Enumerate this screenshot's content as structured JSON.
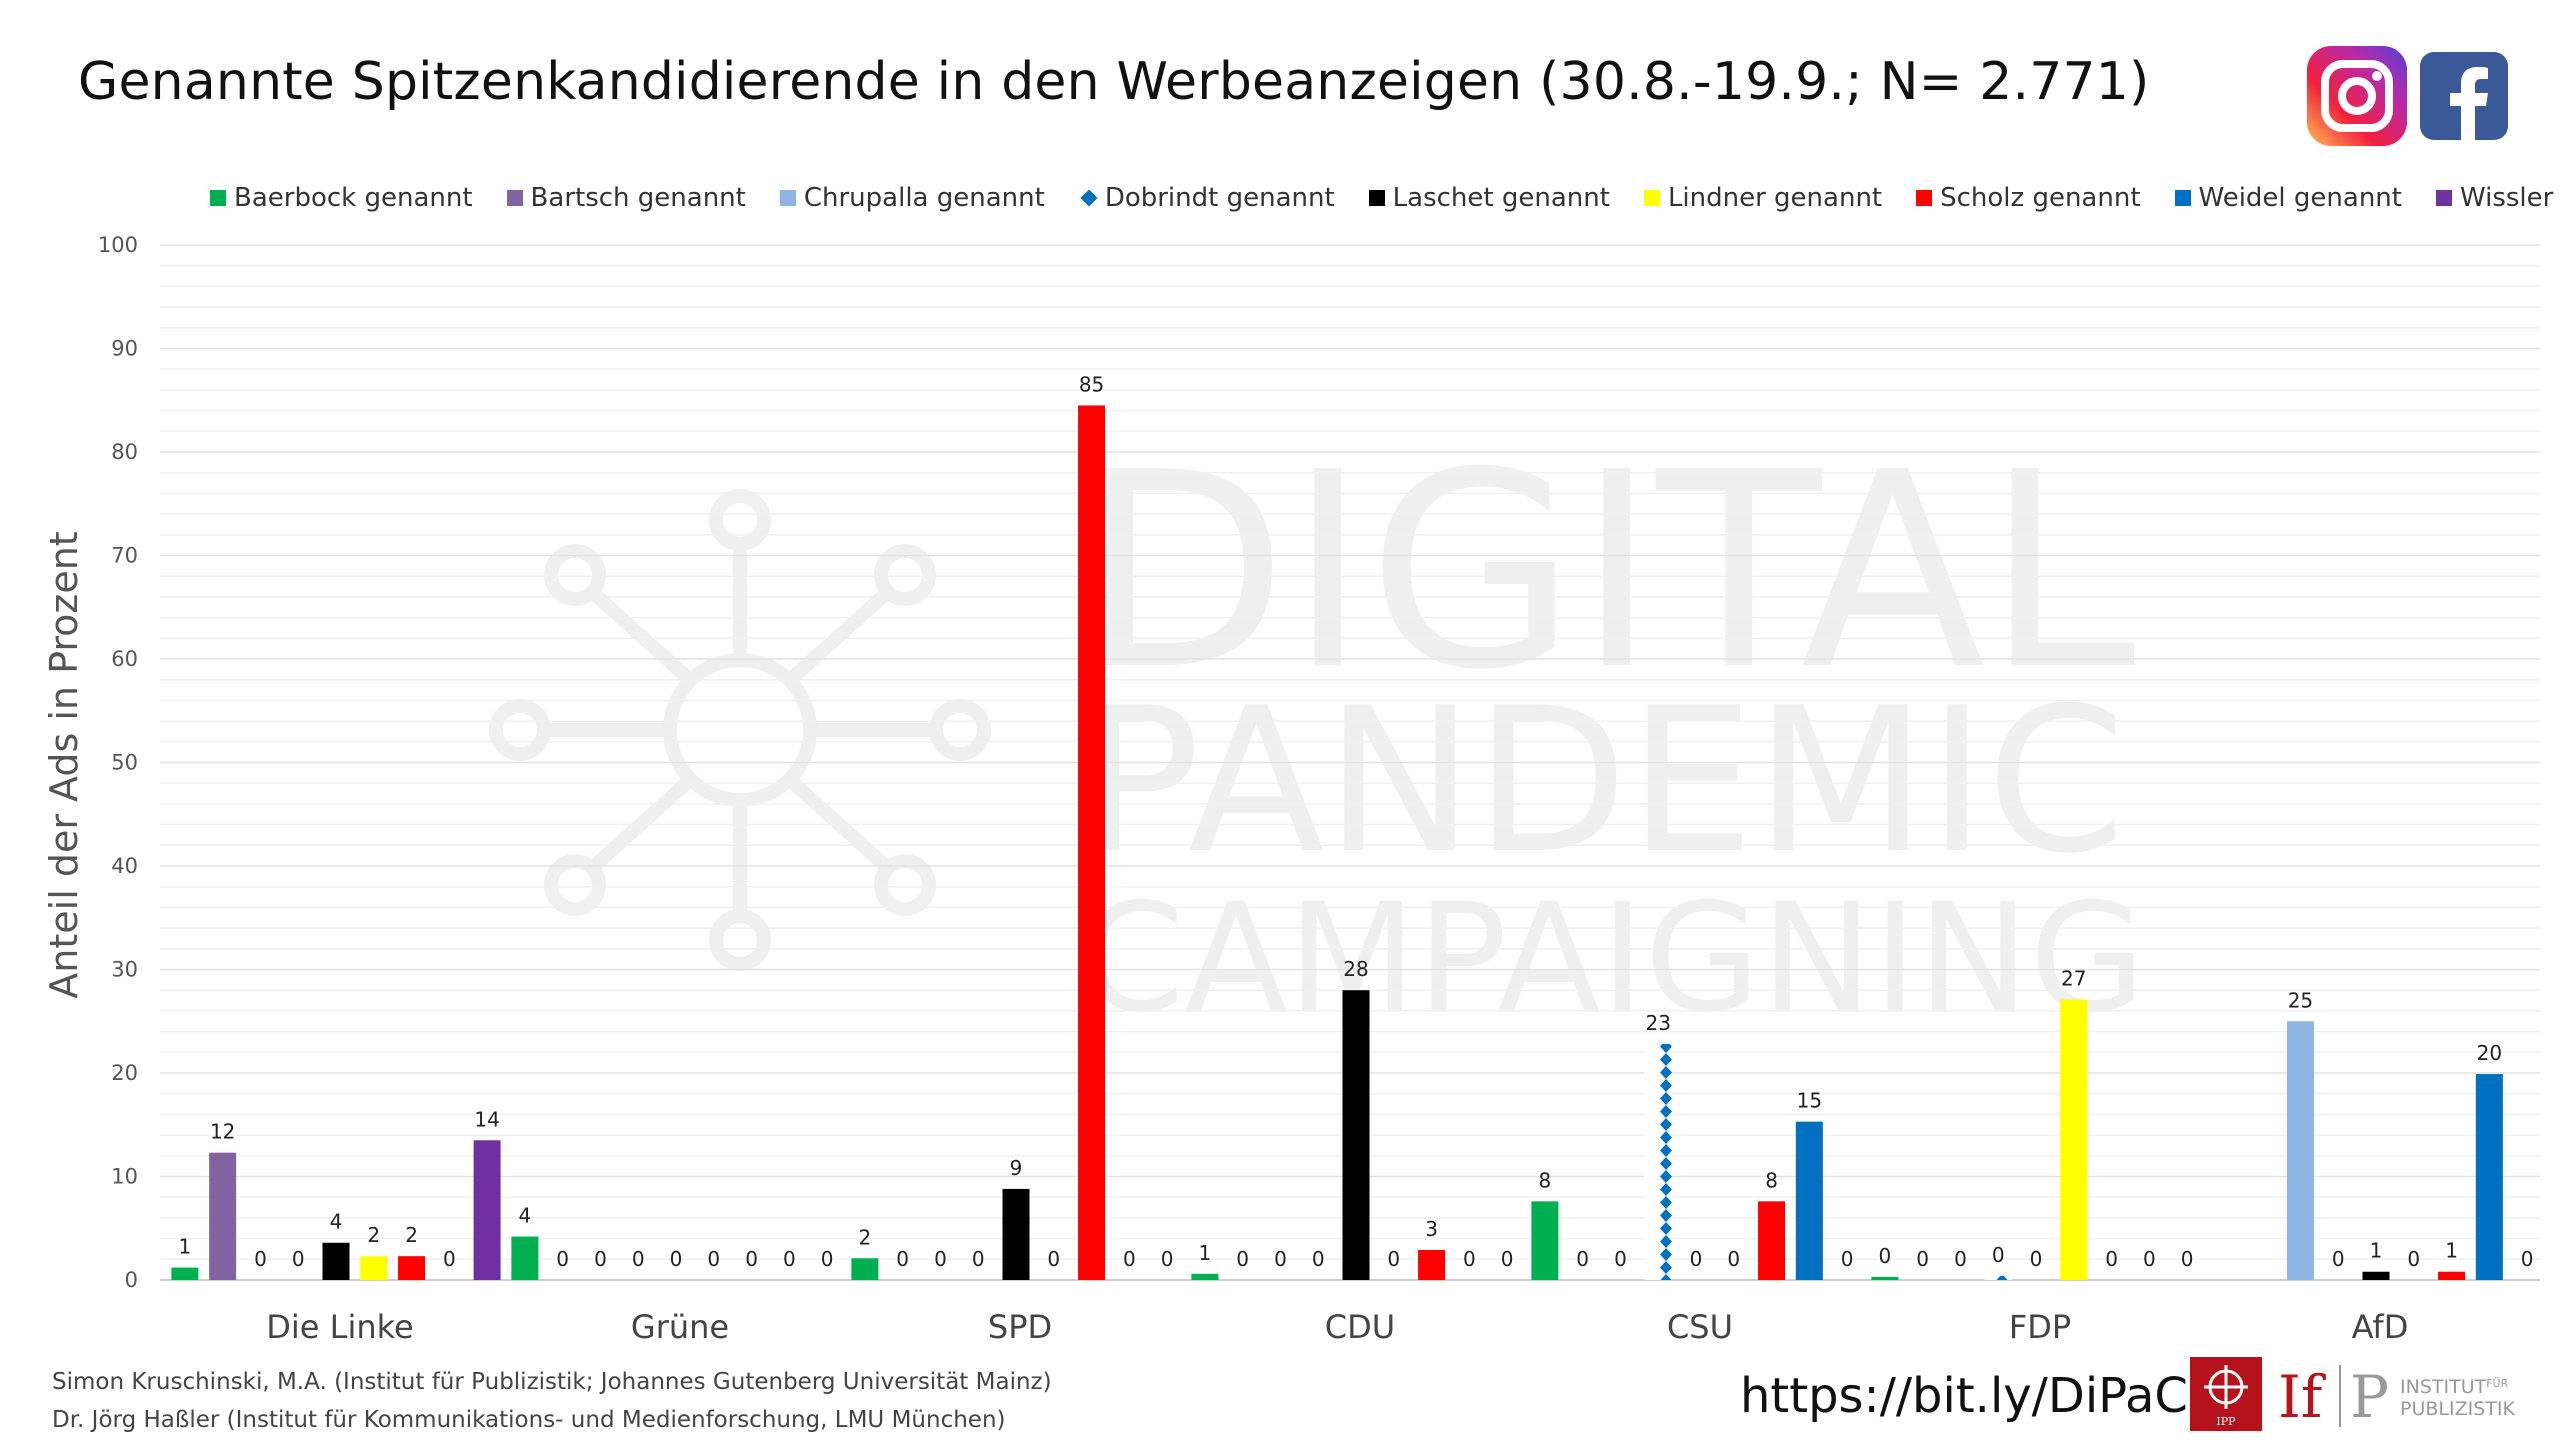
{
  "title": "Genannte Spitzenkandidierende in den Werbeanzeigen (30.8.-19.9.; N= 2.771)",
  "icons": [
    "instagram-icon",
    "facebook-icon"
  ],
  "watermark": [
    "DIGITAL",
    "PANDEMIC",
    "CAMPAIGNING"
  ],
  "credits": [
    "Simon Kruschinski, M.A. (Institut für Publizistik; Johannes Gutenberg Universität Mainz)",
    "Dr. Jörg Haßler (Institut für Kommunikations- und Medienforschung, LMU München)"
  ],
  "url": "https://bit.ly/DiPaCa",
  "institutes": {
    "ipp_label": "IPP",
    "ifp_logo": "If|P",
    "ifp_text_1": "INSTITUT",
    "ifp_text_1_sup": "FÜR",
    "ifp_text_2": "PUBLIZISTIK"
  },
  "chart_data": {
    "type": "bar",
    "ylabel": "Anteil der Ads in Prozent",
    "xlabel": "",
    "ylim": [
      0,
      100
    ],
    "yticks": [
      0,
      10,
      20,
      30,
      40,
      50,
      60,
      70,
      80,
      90,
      100
    ],
    "grid": true,
    "legend_position": "top",
    "categories": [
      "Die Linke",
      "Grüne",
      "SPD",
      "CDU",
      "CSU",
      "FDP",
      "AfD"
    ],
    "series": [
      {
        "name": "Baerbock genannt",
        "color": "#00B050",
        "pattern": "solid",
        "values": [
          1.2,
          4.2,
          2.1,
          0.6,
          7.6,
          0.3,
          null
        ],
        "labels": [
          "1",
          "4",
          "2",
          "1",
          "8",
          "0",
          ""
        ]
      },
      {
        "name": "Bartsch genannt",
        "color": "#8064A2",
        "pattern": "solid",
        "values": [
          12.3,
          0,
          0,
          0,
          0,
          0,
          null
        ],
        "labels": [
          "12",
          "0",
          "0",
          "0",
          "0",
          "0",
          ""
        ]
      },
      {
        "name": "Chrupalla genannt",
        "color": "#8DB4E2",
        "pattern": "solid",
        "values": [
          0,
          0,
          0,
          0,
          0,
          0,
          25
        ],
        "labels": [
          "0",
          "0",
          "0",
          "0",
          "0",
          "0",
          "25"
        ]
      },
      {
        "name": "Dobrindt genannt",
        "color": "#0070C0",
        "pattern": "diamonds",
        "values": [
          0,
          0,
          0,
          0,
          22.8,
          0.4,
          0
        ],
        "labels": [
          "0",
          "0",
          "0",
          "0",
          "23",
          "0",
          "0"
        ]
      },
      {
        "name": "Laschet genannt",
        "color": "#000000",
        "pattern": "solid",
        "values": [
          3.6,
          0,
          8.8,
          28,
          0,
          0,
          0.8
        ],
        "labels": [
          "4",
          "0",
          "9",
          "28",
          "0",
          "0",
          "1"
        ]
      },
      {
        "name": "Lindner genannt",
        "color": "#FFFF00",
        "pattern": "solid",
        "values": [
          2.3,
          0,
          0,
          0,
          0,
          27.1,
          0
        ],
        "labels": [
          "2",
          "0",
          "0",
          "0",
          "0",
          "27",
          "0"
        ]
      },
      {
        "name": "Scholz genannt",
        "color": "#FF0000",
        "pattern": "solid",
        "values": [
          2.3,
          0,
          84.5,
          2.9,
          7.6,
          0,
          0.8
        ],
        "labels": [
          "2",
          "0",
          "85",
          "3",
          "8",
          "0",
          "1"
        ]
      },
      {
        "name": "Weidel genannt",
        "color": "#0070C0",
        "pattern": "solid",
        "values": [
          0,
          0,
          0,
          0,
          15.3,
          0,
          19.9
        ],
        "labels": [
          "0",
          "0",
          "0",
          "0",
          "15",
          "0",
          "20"
        ]
      },
      {
        "name": "Wissler genannt",
        "color": "#7030A0",
        "pattern": "solid",
        "values": [
          13.5,
          0,
          0,
          0,
          0,
          0,
          0
        ],
        "labels": [
          "14",
          "0",
          "0",
          "0",
          "0",
          "0",
          "0"
        ]
      }
    ]
  }
}
